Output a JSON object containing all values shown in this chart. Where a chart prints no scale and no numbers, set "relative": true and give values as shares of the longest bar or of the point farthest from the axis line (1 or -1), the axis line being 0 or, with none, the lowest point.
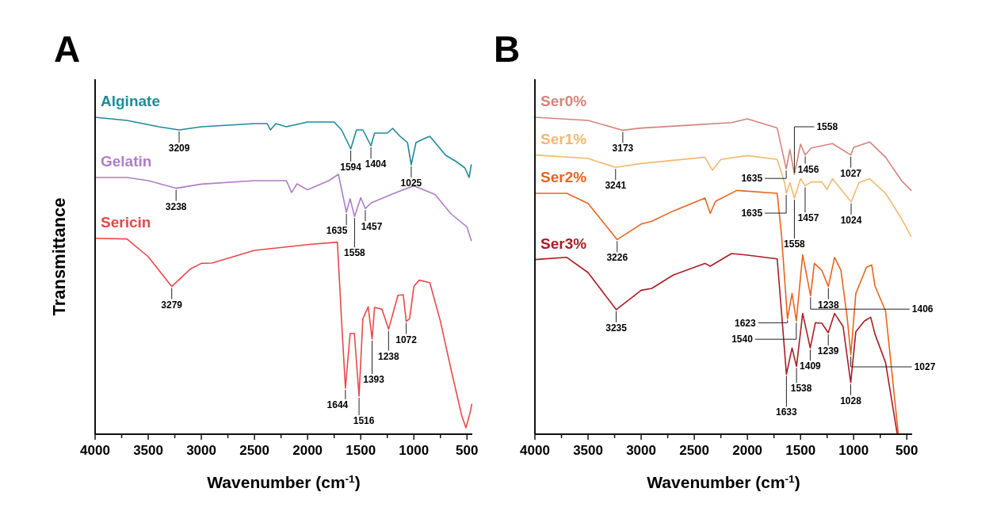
{
  "chart_data": [
    {
      "type": "line",
      "title": "A",
      "xlabel": "Wavenumber (cm$^{-1}$)",
      "ylabel": "Transmittance",
      "relative": true,
      "tick_labels": "x",
      "xlim": [
        4000,
        450
      ],
      "xticks": [
        4000,
        {
          "value": 3750,
          "label": null
        },
        3500,
        {
          "value": 3250,
          "label": null
        },
        3000,
        {
          "value": 2750,
          "label": null
        },
        2500,
        {
          "value": 2250,
          "label": null
        },
        2000,
        {
          "value": 1750,
          "label": null
        },
        1500,
        {
          "value": 1250,
          "label": null
        },
        1000,
        {
          "value": 750,
          "label": null
        },
        500
      ],
      "series": [
        {
          "name": "Alginate",
          "color": "#1f8a9a",
          "x": [
            4000,
            3700,
            3400,
            3209,
            3000,
            2500,
            2380,
            2350,
            2300,
            2200,
            2000,
            1750,
            1680,
            1594,
            1540,
            1480,
            1404,
            1370,
            1250,
            1200,
            1130,
            1060,
            1025,
            980,
            920,
            850,
            800,
            700,
            600,
            520,
            480,
            460
          ],
          "values": [
            1.0,
            0.99,
            0.97,
            0.96,
            0.97,
            0.98,
            0.98,
            0.96,
            0.98,
            0.97,
            0.985,
            0.985,
            0.96,
            0.9,
            0.96,
            0.96,
            0.91,
            0.95,
            0.95,
            0.965,
            0.94,
            0.92,
            0.85,
            0.92,
            0.93,
            0.94,
            0.92,
            0.88,
            0.86,
            0.84,
            0.81,
            0.85
          ]
        },
        {
          "name": "Gelatin",
          "color": "#b07cc6",
          "x": [
            4000,
            3700,
            3500,
            3238,
            3000,
            2500,
            2200,
            2150,
            2100,
            2000,
            1800,
            1710,
            1635,
            1600,
            1558,
            1500,
            1457,
            1400,
            1200,
            1000,
            800,
            650,
            500,
            460
          ],
          "values": [
            0.81,
            0.81,
            0.8,
            0.776,
            0.789,
            0.8,
            0.8,
            0.763,
            0.79,
            0.771,
            0.8,
            0.82,
            0.7,
            0.743,
            0.687,
            0.746,
            0.712,
            0.73,
            0.758,
            0.784,
            0.756,
            0.695,
            0.654,
            0.611
          ]
        },
        {
          "name": "Sericin",
          "color": "#e8484a",
          "x": [
            4000,
            3700,
            3500,
            3279,
            3100,
            3000,
            2900,
            2500,
            2000,
            1720,
            1680,
            1644,
            1600,
            1560,
            1516,
            1480,
            1430,
            1393,
            1370,
            1300,
            1238,
            1150,
            1100,
            1072,
            1040,
            1000,
            950,
            850,
            750,
            650,
            550,
            510,
            470,
            455
          ],
          "values": [
            0.618,
            0.616,
            0.56,
            0.466,
            0.522,
            0.539,
            0.54,
            0.58,
            0.598,
            0.606,
            0.356,
            0.145,
            0.318,
            0.318,
            0.12,
            0.364,
            0.402,
            0.3,
            0.4,
            0.394,
            0.331,
            0.438,
            0.44,
            0.356,
            0.364,
            0.466,
            0.486,
            0.478,
            0.356,
            0.204,
            0.059,
            0.02,
            0.069,
            0.094
          ]
        }
      ],
      "annotations": [
        {
          "text": "3209",
          "x": 3209,
          "y": 0.96
        },
        {
          "text": "1594",
          "x": 1594,
          "y": 0.9
        },
        {
          "text": "1404",
          "x": 1404,
          "y": 0.91
        },
        {
          "text": "1025",
          "x": 1025,
          "y": 0.85
        },
        {
          "text": "3238",
          "x": 3238,
          "y": 0.776
        },
        {
          "text": "1635",
          "x": 1635,
          "y": 0.7
        },
        {
          "text": "1558",
          "x": 1558,
          "y": 0.687
        },
        {
          "text": "1457",
          "x": 1457,
          "y": 0.712
        },
        {
          "text": "3279",
          "x": 3279,
          "y": 0.466
        },
        {
          "text": "1644",
          "x": 1644,
          "y": 0.145
        },
        {
          "text": "1516",
          "x": 1516,
          "y": 0.12
        },
        {
          "text": "1393",
          "x": 1393,
          "y": 0.3
        },
        {
          "text": "1238",
          "x": 1238,
          "y": 0.331
        },
        {
          "text": "1072",
          "x": 1072,
          "y": 0.356
        }
      ]
    },
    {
      "type": "line",
      "title": "B",
      "xlabel": "Wavenumber (cm$^{-1}$)",
      "relative": true,
      "tick_labels": "x",
      "xlim": [
        4000,
        450
      ],
      "xticks": [
        4000,
        {
          "value": 3750,
          "label": null
        },
        3500,
        {
          "value": 3250,
          "label": null
        },
        3000,
        {
          "value": 2750,
          "label": null
        },
        2500,
        {
          "value": 2250,
          "label": null
        },
        2000,
        {
          "value": 1750,
          "label": null
        },
        1500,
        {
          "value": 1250,
          "label": null
        },
        1000,
        {
          "value": 750,
          "label": null
        },
        500
      ],
      "series": [
        {
          "name": "Ser0%",
          "color": "#d4847c",
          "x": [
            4000,
            3500,
            3173,
            3000,
            2500,
            2150,
            2000,
            1720,
            1635,
            1600,
            1558,
            1500,
            1456,
            1400,
            1200,
            1027,
            1000,
            850,
            700,
            550,
            460
          ],
          "values": [
            1.0,
            0.99,
            0.959,
            0.966,
            0.976,
            0.983,
            0.995,
            0.966,
            0.837,
            0.898,
            0.82,
            0.915,
            0.881,
            0.903,
            0.917,
            0.881,
            0.905,
            0.922,
            0.874,
            0.8,
            0.769
          ]
        },
        {
          "name": "Ser1%",
          "color": "#f2b872",
          "x": [
            4000,
            3500,
            3241,
            3000,
            2400,
            2330,
            2250,
            2000,
            1720,
            1650,
            1635,
            1600,
            1558,
            1500,
            1457,
            1400,
            1300,
            1250,
            1200,
            1024,
            950,
            850,
            700,
            550,
            460
          ],
          "values": [
            0.881,
            0.87,
            0.842,
            0.854,
            0.874,
            0.833,
            0.867,
            0.879,
            0.867,
            0.794,
            0.76,
            0.794,
            0.745,
            0.806,
            0.784,
            0.796,
            0.796,
            0.772,
            0.806,
            0.733,
            0.794,
            0.806,
            0.76,
            0.68,
            0.624
          ]
        },
        {
          "name": "Ser2%",
          "color": "#e8641e",
          "x": [
            4000,
            3700,
            3500,
            3226,
            3000,
            2900,
            2700,
            2400,
            2350,
            2300,
            2100,
            1720,
            1680,
            1623,
            1580,
            1540,
            1480,
            1406,
            1370,
            1300,
            1238,
            1180,
            1120,
            1060,
            1027,
            980,
            920,
            880,
            830,
            800,
            700,
            580
          ],
          "values": [
            0.76,
            0.76,
            0.728,
            0.614,
            0.663,
            0.672,
            0.704,
            0.745,
            0.697,
            0.735,
            0.769,
            0.76,
            0.631,
            0.364,
            0.444,
            0.357,
            0.566,
            0.437,
            0.539,
            0.517,
            0.466,
            0.558,
            0.517,
            0.364,
            0.25,
            0.444,
            0.493,
            0.527,
            0.534,
            0.468,
            0.388,
            0.0
          ]
        },
        {
          "name": "Ser3%",
          "color": "#a81c24",
          "x": [
            4000,
            3700,
            3500,
            3235,
            3000,
            2900,
            2700,
            2400,
            2350,
            2150,
            2000,
            1720,
            1680,
            1633,
            1580,
            1538,
            1480,
            1409,
            1360,
            1300,
            1239,
            1180,
            1100,
            1028,
            980,
            900,
            840,
            800,
            700,
            590
          ],
          "values": [
            0.551,
            0.558,
            0.51,
            0.393,
            0.454,
            0.46,
            0.502,
            0.539,
            0.53,
            0.57,
            0.565,
            0.553,
            0.388,
            0.189,
            0.272,
            0.214,
            0.381,
            0.272,
            0.352,
            0.35,
            0.32,
            0.381,
            0.34,
            0.163,
            0.323,
            0.357,
            0.369,
            0.316,
            0.226,
            0.0
          ]
        }
      ],
      "annotations": [
        {
          "text": "3173",
          "x": 3173,
          "y": 0.959
        },
        {
          "text": "1558",
          "x": 1558,
          "y": 0.82
        },
        {
          "text": "1456",
          "x": 1456,
          "y": 0.881
        },
        {
          "text": "1027",
          "x": 1027,
          "y": 0.881
        },
        {
          "text": "3241",
          "x": 3241,
          "y": 0.842
        },
        {
          "text": "1635",
          "x": 1635,
          "y": 0.837
        },
        {
          "text": "1635",
          "x": 1635,
          "y": 0.76
        },
        {
          "text": "1558",
          "x": 1558,
          "y": 0.745
        },
        {
          "text": "1457",
          "x": 1457,
          "y": 0.784
        },
        {
          "text": "1024",
          "x": 1024,
          "y": 0.733
        },
        {
          "text": "3226",
          "x": 3226,
          "y": 0.614
        },
        {
          "text": "1623",
          "x": 1623,
          "y": 0.364
        },
        {
          "text": "1540",
          "x": 1540,
          "y": 0.357
        },
        {
          "text": "1406",
          "x": 1406,
          "y": 0.437
        },
        {
          "text": "1238",
          "x": 1238,
          "y": 0.466
        },
        {
          "text": "1027",
          "x": 1027,
          "y": 0.25
        },
        {
          "text": "3235",
          "x": 3235,
          "y": 0.393
        },
        {
          "text": "1633",
          "x": 1633,
          "y": 0.189
        },
        {
          "text": "1538",
          "x": 1538,
          "y": 0.214
        },
        {
          "text": "1409",
          "x": 1409,
          "y": 0.272
        },
        {
          "text": "1239",
          "x": 1239,
          "y": 0.32
        },
        {
          "text": "1028",
          "x": 1028,
          "y": 0.163
        }
      ]
    }
  ]
}
